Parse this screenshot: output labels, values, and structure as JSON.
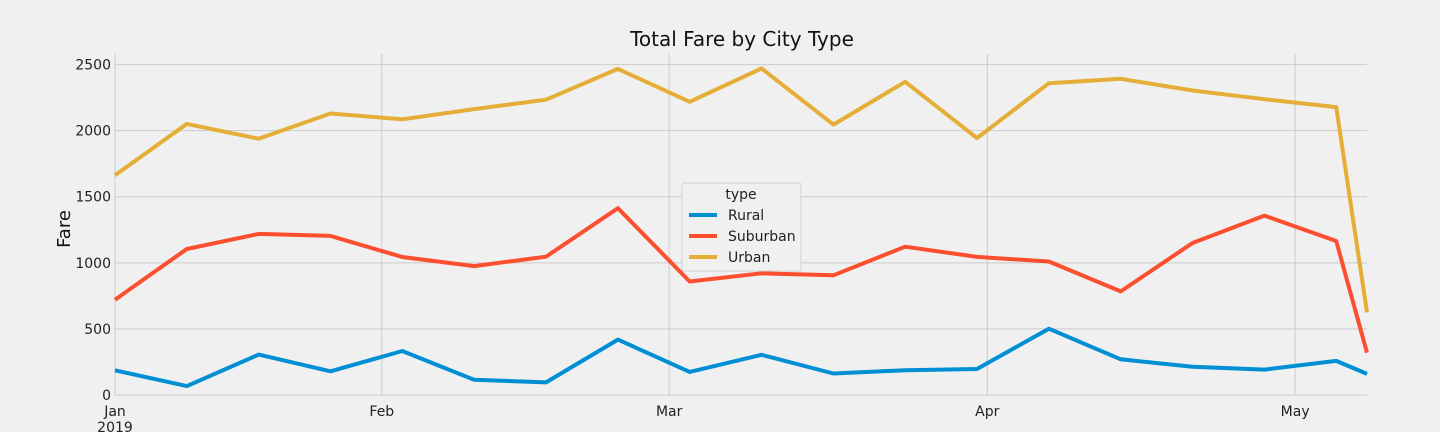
{
  "chart_data": {
    "type": "line",
    "title": "Total Fare by City Type",
    "xlabel": "",
    "ylabel": "Fare",
    "ylim": [
      0,
      2580
    ],
    "yticks": [
      0,
      500,
      1000,
      1500,
      2000,
      2500
    ],
    "grid": true,
    "legend_title": "type",
    "legend_position": "center",
    "x": [
      "2019-01-06",
      "2019-01-13",
      "2019-01-20",
      "2019-01-27",
      "2019-02-03",
      "2019-02-10",
      "2019-02-17",
      "2019-02-24",
      "2019-03-03",
      "2019-03-10",
      "2019-03-17",
      "2019-03-24",
      "2019-03-31",
      "2019-04-07",
      "2019-04-14",
      "2019-04-21",
      "2019-04-28",
      "2019-05-05"
    ],
    "xlim": [
      "2019-01-06",
      "2019-05-05"
    ],
    "xticks": [
      {
        "date": "2019-01-06",
        "label": "Jan",
        "sublabel": "2019"
      },
      {
        "date": "2019-02-01",
        "label": "Feb",
        "sublabel": ""
      },
      {
        "date": "2019-03-01",
        "label": "Mar",
        "sublabel": ""
      },
      {
        "date": "2019-04-01",
        "label": "Apr",
        "sublabel": ""
      },
      {
        "date": "2019-05-01",
        "label": "May",
        "sublabel": ""
      }
    ],
    "series": [
      {
        "name": "Rural",
        "color": "#008fd5",
        "values": [
          187,
          67,
          306,
          179,
          333,
          115,
          95,
          419,
          175,
          304,
          163,
          188,
          197,
          502,
          270,
          214,
          192,
          258
        ]
      },
      {
        "name": "Suburban",
        "color": "#fc4f30",
        "values": [
          721,
          1105,
          1219,
          1204,
          1044,
          975,
          1046,
          1413,
          859,
          921,
          906,
          1122,
          1045,
          1010,
          784,
          1150,
          1357,
          1165
        ]
      },
      {
        "name": "Urban",
        "color": "#e5ae38",
        "values": [
          1662,
          2051,
          1939,
          2130,
          2086,
          2163,
          2234,
          2467,
          2218,
          2471,
          2046,
          2370,
          1944,
          2359,
          2392,
          2304,
          2238,
          2178
        ]
      }
    ],
    "tail": {
      "note": "",
      "values": [
        160,
        320,
        625
      ]
    }
  }
}
